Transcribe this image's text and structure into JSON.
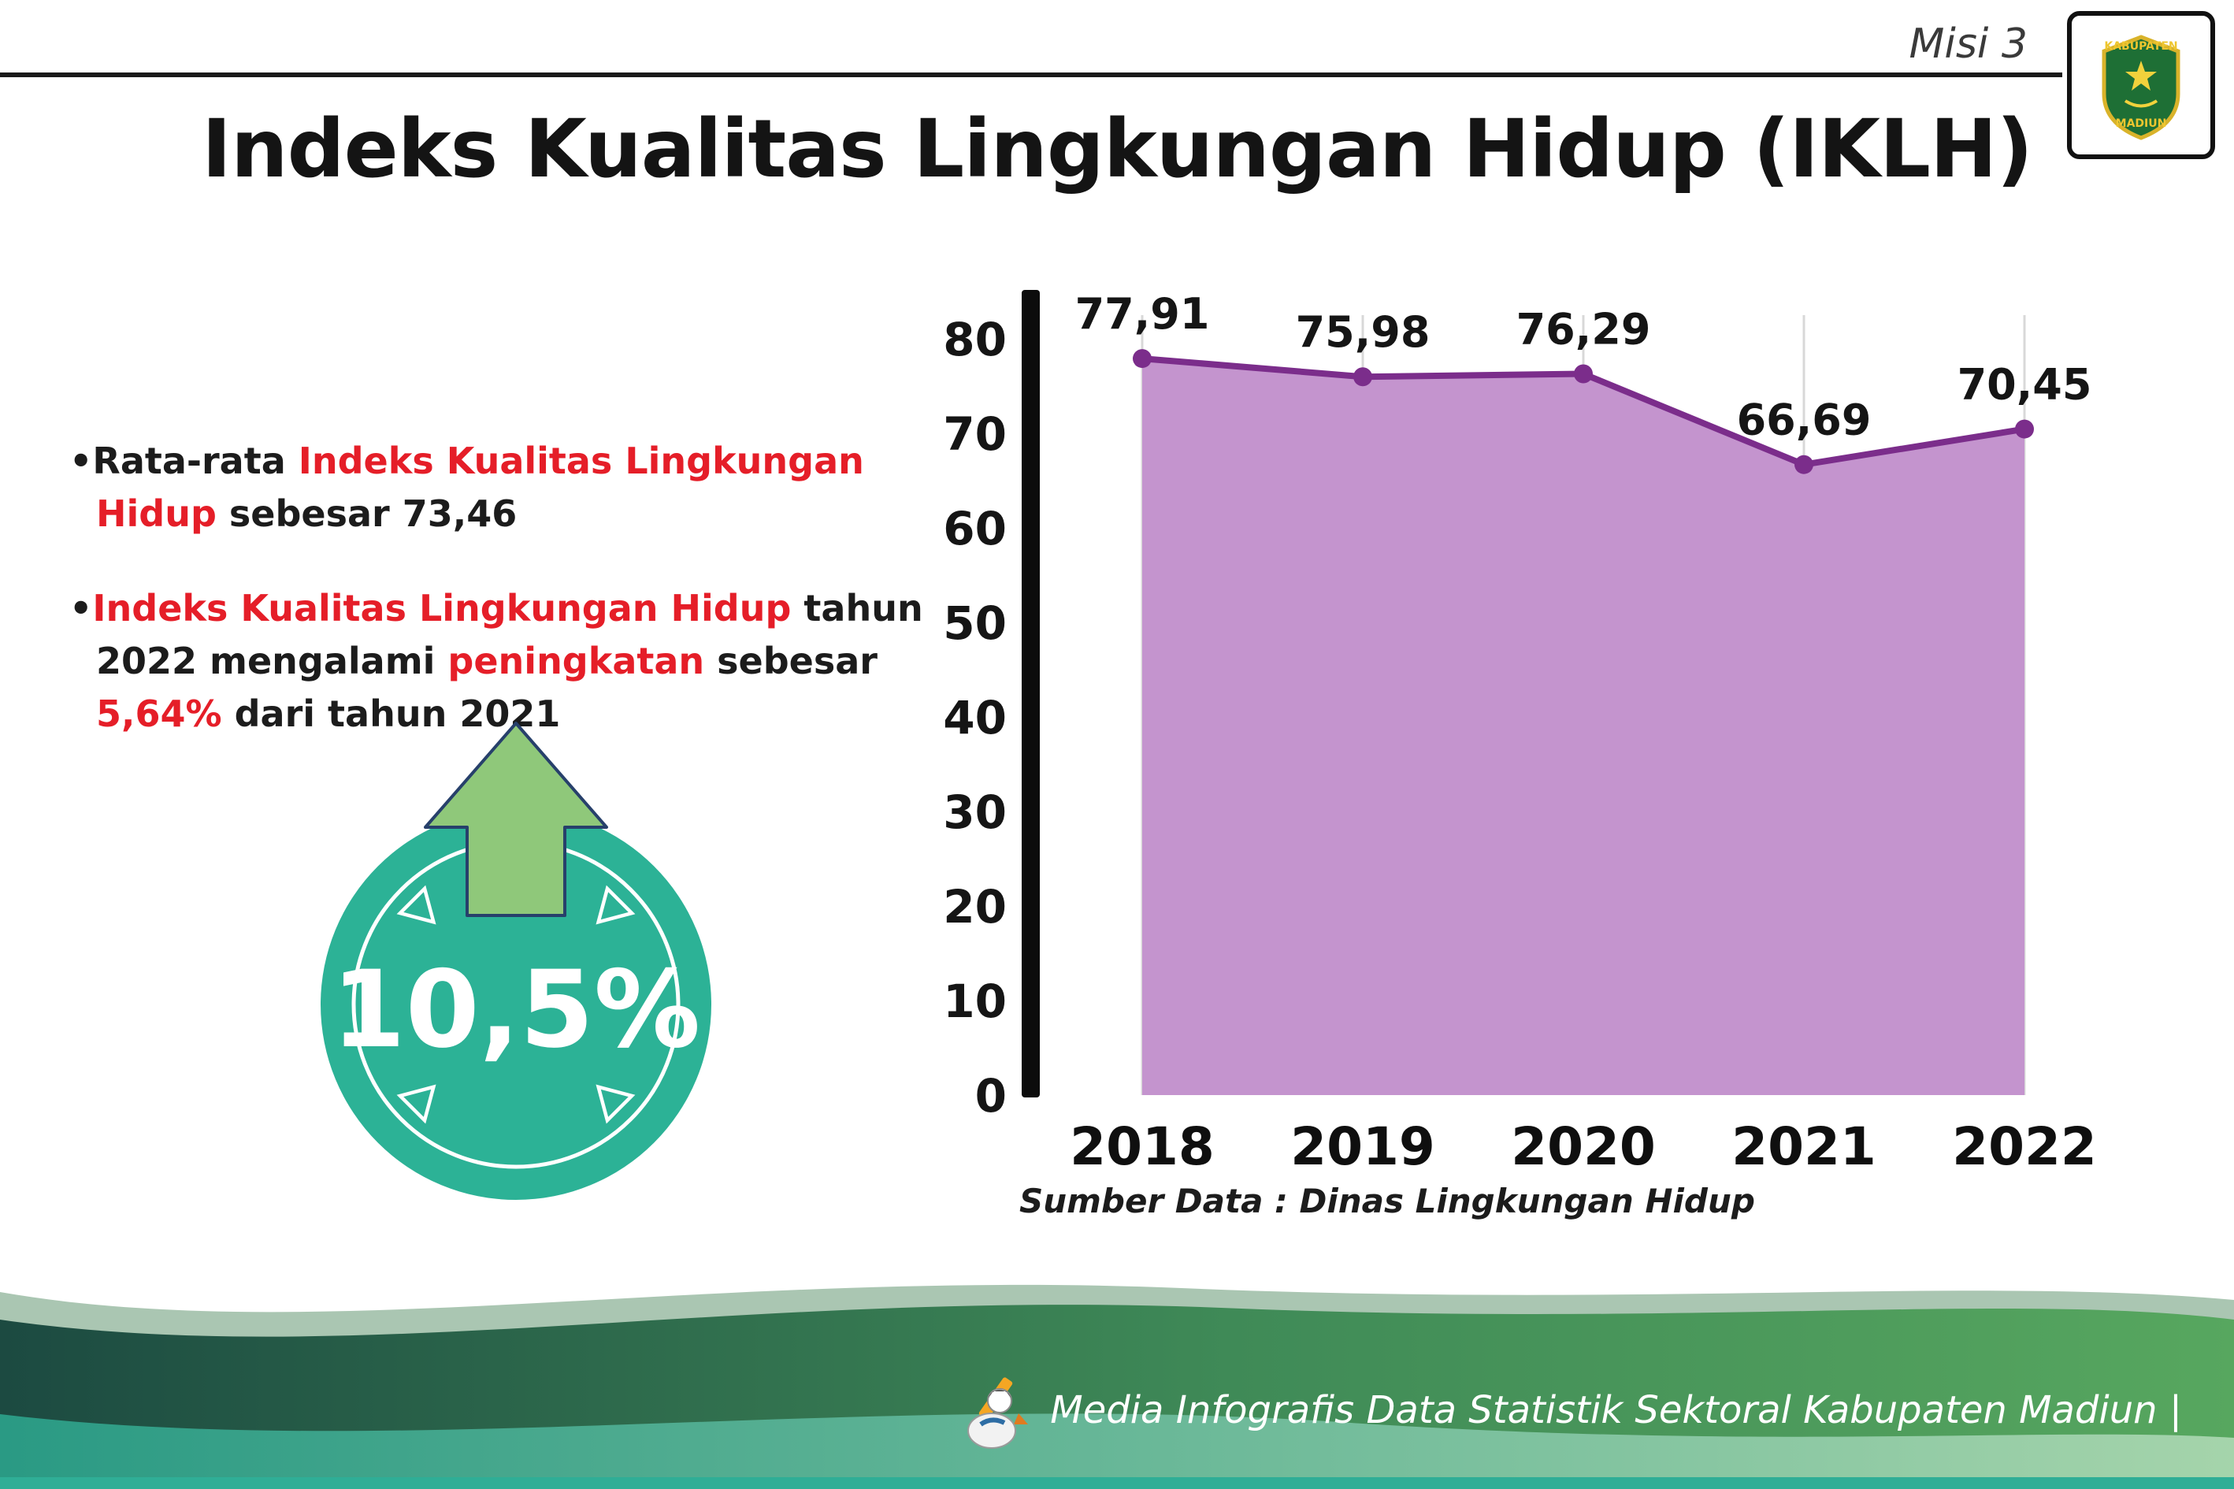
{
  "colors": {
    "dark": "#1c1c1c",
    "red": "#e51e28",
    "purple_fill": "#c494ce",
    "purple_line": "#7b2d8b",
    "grid": "#d8d8d8",
    "axis": "#0c0c0c",
    "teal_badge": "#2cb296",
    "arrow_green": "#8fc87a",
    "arrow_outline": "#27406b",
    "footer_dark": "#1c4a41",
    "footer_green": "#57a75f",
    "footer_teal_left": "#2a9a84",
    "footer_teal_right": "#a5d4ab",
    "footer_bottom_bar": "#2fae96"
  },
  "header": {
    "misi_label": "Misi 3",
    "title": "Indeks Kualitas Lingkungan Hidup (IKLH)",
    "logo_top": "KABUPATEN",
    "logo_bottom": "MADIUN"
  },
  "bullets": [
    {
      "segments": [
        {
          "text": "Rata-rata ",
          "color": "dark"
        },
        {
          "text": "Indeks Kualitas Lingkungan Hidup",
          "color": "red"
        },
        {
          "text": " sebesar 73,46",
          "color": "dark"
        }
      ]
    },
    {
      "segments": [
        {
          "text": "Indeks Kualitas Lingkungan Hidup",
          "color": "red"
        },
        {
          "text": " tahun 2022 mengalami ",
          "color": "dark"
        },
        {
          "text": "peningkatan",
          "color": "red"
        },
        {
          "text": " sebesar ",
          "color": "dark"
        },
        {
          "text": "5,64%",
          "color": "red"
        },
        {
          "text": " dari tahun 2021",
          "color": "dark"
        }
      ]
    }
  ],
  "badge": {
    "percent": "10,5%"
  },
  "chart_data": {
    "type": "area",
    "title": "Indeks Kualitas Lingkungan Hidup (IKLH)",
    "categories": [
      "2018",
      "2019",
      "2020",
      "2021",
      "2022"
    ],
    "values": [
      77.91,
      75.98,
      76.29,
      66.69,
      70.45
    ],
    "point_labels": [
      "77,91",
      "75,98",
      "76,29",
      "66,69",
      "70,45"
    ],
    "ylim": [
      0,
      80
    ],
    "yticks": [
      0,
      10,
      20,
      30,
      40,
      50,
      60,
      70,
      80
    ],
    "grid": "vertical",
    "legend": "none",
    "source": "Sumber Data : Dinas Lingkungan Hidup"
  },
  "footer": {
    "credit": "Media Infografis Data Statistik Sektoral Kabupaten Madiun |"
  }
}
